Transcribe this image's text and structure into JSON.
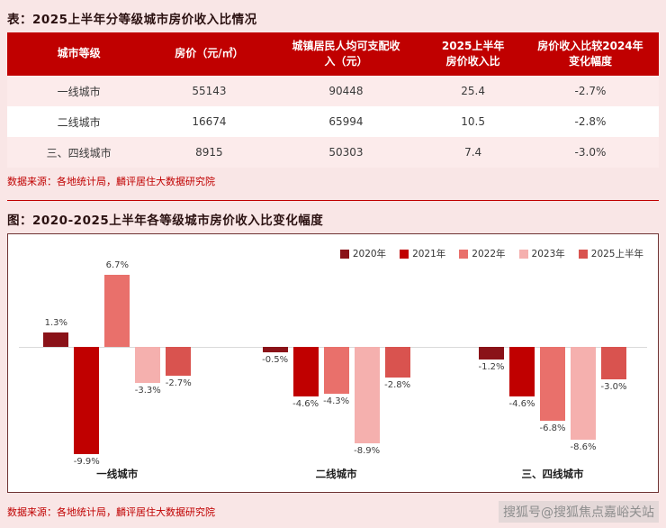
{
  "page": {
    "background_color": "#f9e6e6",
    "accent_color": "#c00000",
    "row_stripe_color": "#fcebeb"
  },
  "sections": {
    "table": {
      "title": "表：2025上半年分等级城市房价收入比情况",
      "source": "数据来源：各地统计局，麟评居住大数据研究院"
    },
    "chart": {
      "title": "图：2020-2025上半年各等级城市房价收入比变化幅度",
      "source": "数据来源：各地统计局，麟评居住大数据研究院"
    }
  },
  "chart_data": [
    {
      "type": "table",
      "title": "2025上半年分等级城市房价收入比情况",
      "columns": [
        "城市等级",
        "房价（元/㎡）",
        "城镇居民人均可支配收\n入（元）",
        "2025上半年\n房价收入比",
        "房价收入比较2024年\n变化幅度"
      ],
      "rows": [
        [
          "一线城市",
          "55143",
          "90448",
          "25.4",
          "-2.7%"
        ],
        [
          "二线城市",
          "16674",
          "65994",
          "10.5",
          "-2.8%"
        ],
        [
          "三、四线城市",
          "8915",
          "50303",
          "7.4",
          "-3.0%"
        ]
      ]
    },
    {
      "type": "bar",
      "title": "2020-2025上半年各等级城市房价收入比变化幅度",
      "categories": [
        "一线城市",
        "二线城市",
        "三、四线城市"
      ],
      "series": [
        {
          "name": "2020年",
          "color": "#8a1218",
          "values": [
            1.3,
            -0.5,
            -1.2
          ]
        },
        {
          "name": "2021年",
          "color": "#c00000",
          "values": [
            -9.9,
            -4.6,
            -4.6
          ]
        },
        {
          "name": "2022年",
          "color": "#e9706b",
          "values": [
            6.7,
            -4.3,
            -6.8
          ]
        },
        {
          "name": "2023年",
          "color": "#f5b0ae",
          "values": [
            -3.3,
            -8.9,
            -8.6
          ]
        },
        {
          "name": "2025上半年",
          "color": "#d9534f",
          "values": [
            -2.7,
            -2.8,
            -3.0
          ]
        }
      ],
      "unit": "%",
      "ylim": [
        -11,
        8
      ],
      "grid": false,
      "legend_position": "top-right",
      "value_labels": true
    }
  ],
  "footer": {
    "watermark": "搜狐号@搜狐焦点嘉峪关站"
  }
}
